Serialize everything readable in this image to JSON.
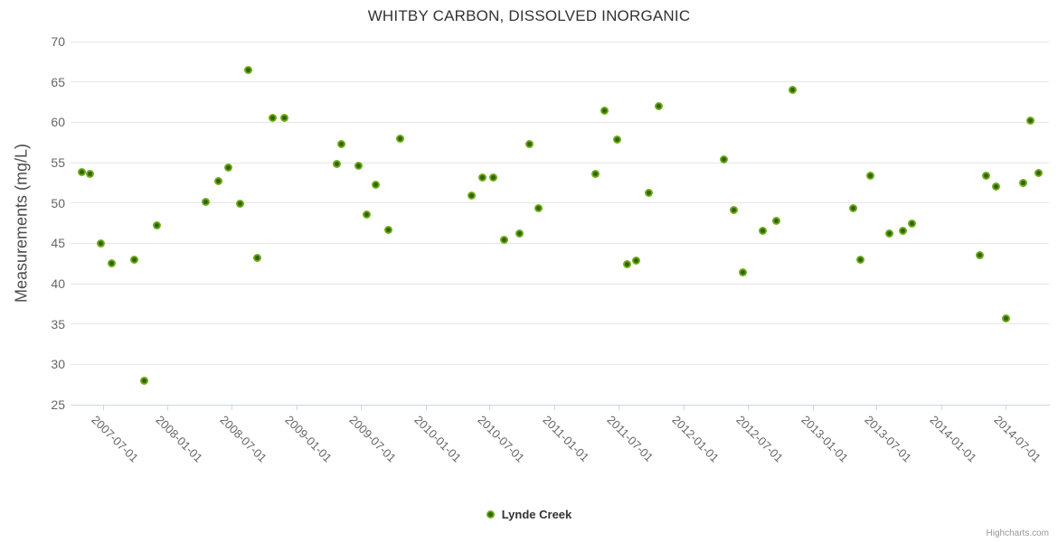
{
  "chart": {
    "title": "WHITBY CARBON, DISSOLVED INORGANIC",
    "legend": {
      "label": "Lynde Creek"
    },
    "credits": "Highcharts.com"
  },
  "colors": {
    "series_green": "#7cb41c",
    "series_green_dark_center": "#2f6405",
    "gridline": "#e6e6e6",
    "axis_line": "#ccd6eb",
    "tick_label": "#666666",
    "title_text": "#333333",
    "credits_text": "#999999"
  },
  "chart_data": {
    "type": "scatter",
    "title": "WHITBY CARBON, DISSOLVED INORGANIC",
    "xlabel": "",
    "ylabel": "Measurements (mg/L)",
    "grid": "horizontal",
    "legend_position": "bottom",
    "x_axis": {
      "min": "2007-04-01",
      "max": "2014-11-01",
      "tick_labels": [
        "2007-07-01",
        "2008-01-01",
        "2008-07-01",
        "2009-01-01",
        "2009-07-01",
        "2010-01-01",
        "2010-07-01",
        "2011-01-01",
        "2011-07-01",
        "2012-01-01",
        "2012-07-01",
        "2013-01-01",
        "2013-07-01",
        "2014-01-01",
        "2014-07-01"
      ],
      "label_rotation_deg": 45
    },
    "y_axis": {
      "min": 25,
      "max": 70,
      "tick_step": 5,
      "ticks": [
        25,
        30,
        35,
        40,
        45,
        50,
        55,
        60,
        65,
        70
      ]
    },
    "series": [
      {
        "name": "Lynde Creek",
        "color": "#7cb41c",
        "points": [
          {
            "x": "2007-05-02",
            "y": 53.8
          },
          {
            "x": "2007-05-25",
            "y": 53.6
          },
          {
            "x": "2007-06-27",
            "y": 45.0
          },
          {
            "x": "2007-07-27",
            "y": 42.5
          },
          {
            "x": "2007-09-29",
            "y": 43.0
          },
          {
            "x": "2007-10-28",
            "y": 28.0
          },
          {
            "x": "2007-12-02",
            "y": 47.2
          },
          {
            "x": "2008-04-18",
            "y": 50.1
          },
          {
            "x": "2008-05-24",
            "y": 52.7
          },
          {
            "x": "2008-06-22",
            "y": 54.4
          },
          {
            "x": "2008-07-25",
            "y": 49.9
          },
          {
            "x": "2008-08-17",
            "y": 66.5
          },
          {
            "x": "2008-09-11",
            "y": 43.2
          },
          {
            "x": "2008-10-25",
            "y": 60.5
          },
          {
            "x": "2008-11-27",
            "y": 60.5
          },
          {
            "x": "2009-04-23",
            "y": 54.8
          },
          {
            "x": "2009-05-07",
            "y": 57.3
          },
          {
            "x": "2009-06-25",
            "y": 54.6
          },
          {
            "x": "2009-07-19",
            "y": 48.6
          },
          {
            "x": "2009-08-13",
            "y": 52.3
          },
          {
            "x": "2009-09-16",
            "y": 46.7
          },
          {
            "x": "2009-10-21",
            "y": 58.0
          },
          {
            "x": "2010-05-10",
            "y": 50.9
          },
          {
            "x": "2010-06-10",
            "y": 53.2
          },
          {
            "x": "2010-07-12",
            "y": 53.2
          },
          {
            "x": "2010-08-11",
            "y": 45.4
          },
          {
            "x": "2010-09-24",
            "y": 46.2
          },
          {
            "x": "2010-10-22",
            "y": 57.3
          },
          {
            "x": "2010-11-17",
            "y": 49.3
          },
          {
            "x": "2011-04-26",
            "y": 53.6
          },
          {
            "x": "2011-05-22",
            "y": 61.4
          },
          {
            "x": "2011-06-28",
            "y": 57.9
          },
          {
            "x": "2011-07-26",
            "y": 42.4
          },
          {
            "x": "2011-08-20",
            "y": 42.8
          },
          {
            "x": "2011-09-26",
            "y": 51.2
          },
          {
            "x": "2011-10-23",
            "y": 62.0
          },
          {
            "x": "2012-04-25",
            "y": 55.4
          },
          {
            "x": "2012-05-22",
            "y": 49.1
          },
          {
            "x": "2012-06-17",
            "y": 41.4
          },
          {
            "x": "2012-08-12",
            "y": 46.6
          },
          {
            "x": "2012-09-21",
            "y": 47.8
          },
          {
            "x": "2012-11-06",
            "y": 64.0
          },
          {
            "x": "2013-04-26",
            "y": 49.4
          },
          {
            "x": "2013-05-16",
            "y": 43.0
          },
          {
            "x": "2013-06-14",
            "y": 53.4
          },
          {
            "x": "2013-08-07",
            "y": 46.2
          },
          {
            "x": "2013-09-13",
            "y": 46.5
          },
          {
            "x": "2013-10-10",
            "y": 47.4
          },
          {
            "x": "2014-04-18",
            "y": 43.5
          },
          {
            "x": "2014-05-07",
            "y": 53.4
          },
          {
            "x": "2014-06-04",
            "y": 52.0
          },
          {
            "x": "2014-07-02",
            "y": 35.7
          },
          {
            "x": "2014-08-21",
            "y": 52.5
          },
          {
            "x": "2014-09-09",
            "y": 60.2
          },
          {
            "x": "2014-10-02",
            "y": 53.7
          }
        ]
      }
    ]
  }
}
